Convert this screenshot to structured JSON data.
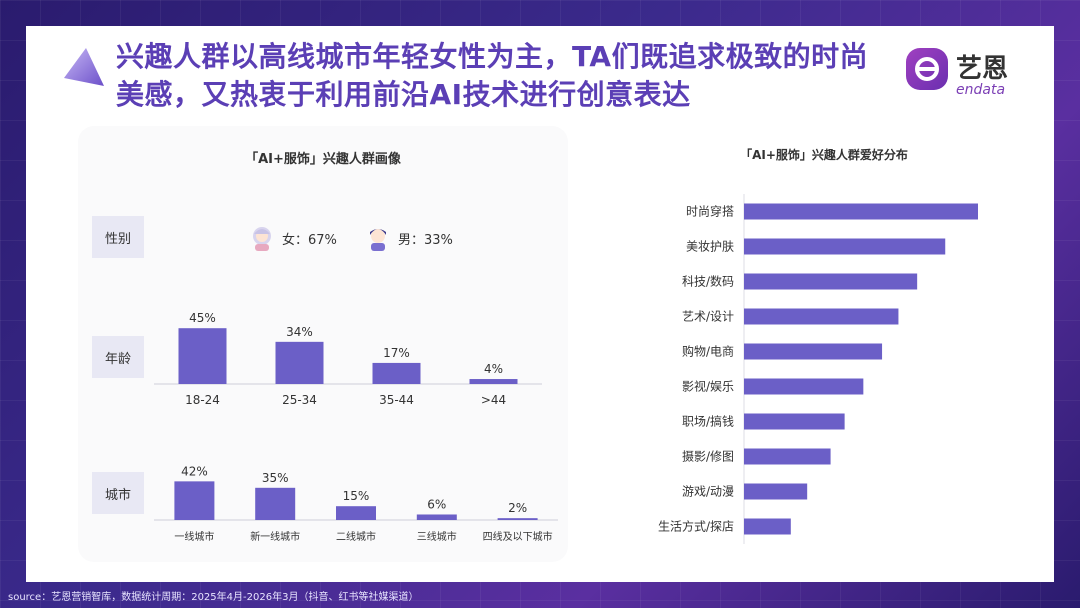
{
  "title": "兴趣人群以高线城市年轻女性为主，TA们既追求极致的时尚美感，又热衷于利用前沿AI技术进行创意表达",
  "logo": {
    "cn": "艺恩",
    "en": "endata"
  },
  "left_panel": {
    "title": "「AI+服饰」兴趣人群画像",
    "gender_label": "性别",
    "female": "女：67%",
    "male": "男：33%",
    "age_label": "年龄",
    "city_label": "城市"
  },
  "right_panel": {
    "title": "「AI+服饰」兴趣人群爱好分布"
  },
  "source": "source：艺恩营销智库，数据统计周期：2025年4月-2026年3月（抖音、红书等社媒渠道）",
  "colors": {
    "bar": "#6b5fc7",
    "title": "#5b3fb5"
  },
  "chart_data": [
    {
      "type": "bar",
      "name_key": "age",
      "categories": [
        "18-24",
        "25-34",
        "35-44",
        ">44"
      ],
      "values": [
        45,
        34,
        17,
        4
      ],
      "labels": [
        "45%",
        "34%",
        "17%",
        "4%"
      ],
      "ylim": [
        0,
        50
      ]
    },
    {
      "type": "bar",
      "name_key": "city",
      "categories": [
        "一线城市",
        "新一线城市",
        "二线城市",
        "三线城市",
        "四线及以下城市"
      ],
      "values": [
        42,
        35,
        15,
        6,
        2
      ],
      "labels": [
        "42%",
        "35%",
        "15%",
        "6%",
        "2%"
      ],
      "ylim": [
        0,
        50
      ]
    },
    {
      "type": "bar",
      "orientation": "horizontal",
      "name_key": "hobby",
      "title": "「AI+服饰」兴趣人群爱好分布",
      "categories": [
        "时尚穿搭",
        "美妆护肤",
        "科技/数码",
        "艺术/设计",
        "购物/电商",
        "影视/娱乐",
        "职场/搞钱",
        "摄影/修图",
        "游戏/动漫",
        "生活方式/探店"
      ],
      "values": [
        100,
        86,
        74,
        66,
        59,
        51,
        43,
        37,
        27,
        20
      ]
    }
  ]
}
